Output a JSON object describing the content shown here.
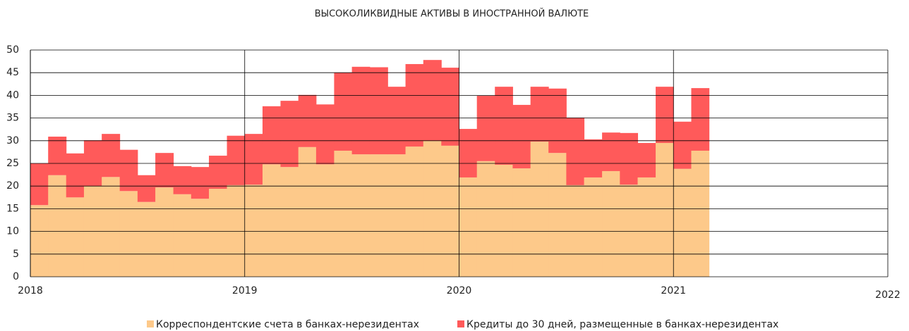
{
  "chart_data": {
    "type": "stacked_step_area",
    "title": "ВЫСОКОЛИКВИДНЫЕ АКТИВЫ В ИНОСТРАННОЙ ВАЛЮТЕ",
    "x": [
      2018.0,
      2018.083,
      2018.167,
      2018.25,
      2018.333,
      2018.417,
      2018.5,
      2018.583,
      2018.667,
      2018.75,
      2018.833,
      2018.917,
      2019.0,
      2019.083,
      2019.167,
      2019.25,
      2019.333,
      2019.417,
      2019.5,
      2019.583,
      2019.667,
      2019.75,
      2019.833,
      2019.917,
      2020.0,
      2020.083,
      2020.167,
      2020.25,
      2020.333,
      2020.417,
      2020.5,
      2020.583,
      2020.667,
      2020.75,
      2020.833,
      2020.917,
      2021.0,
      2021.083
    ],
    "series": [
      {
        "name": "Корреспондентские счета в банках-нерезидентах",
        "color": "#fdc98a",
        "values": [
          15.8,
          22.4,
          17.5,
          20.0,
          22.0,
          18.9,
          16.5,
          19.7,
          18.2,
          17.2,
          19.4,
          20.2,
          20.3,
          24.8,
          24.2,
          28.6,
          24.8,
          27.8,
          27.0,
          27.0,
          27.0,
          28.7,
          30.0,
          28.9,
          21.9,
          25.5,
          24.7,
          23.9,
          29.8,
          27.3,
          20.2,
          21.9,
          23.3,
          20.3,
          21.9,
          29.5,
          23.8,
          27.8
        ]
      },
      {
        "name": "Кредиты до 30 дней, размещенные в банках-нерезидентах",
        "color": "#ff5a5a",
        "values": [
          9.2,
          8.5,
          9.7,
          10.1,
          9.5,
          9.1,
          5.9,
          7.6,
          6.2,
          7.0,
          7.3,
          10.9,
          11.2,
          12.8,
          14.6,
          11.5,
          13.2,
          17.2,
          19.3,
          19.2,
          14.9,
          18.2,
          17.8,
          17.2,
          10.7,
          14.4,
          17.2,
          14.0,
          12.1,
          14.2,
          14.9,
          8.4,
          8.5,
          11.4,
          7.6,
          12.4,
          10.4,
          13.8
        ]
      }
    ],
    "xlim": [
      2018,
      2022
    ],
    "xticks": [
      2018,
      2019,
      2020,
      2021,
      2022
    ],
    "ylim": [
      0,
      50
    ],
    "yticks": [
      0,
      5,
      10,
      15,
      20,
      25,
      30,
      35,
      40,
      45,
      50
    ],
    "grid": true,
    "legend": "bottom"
  }
}
